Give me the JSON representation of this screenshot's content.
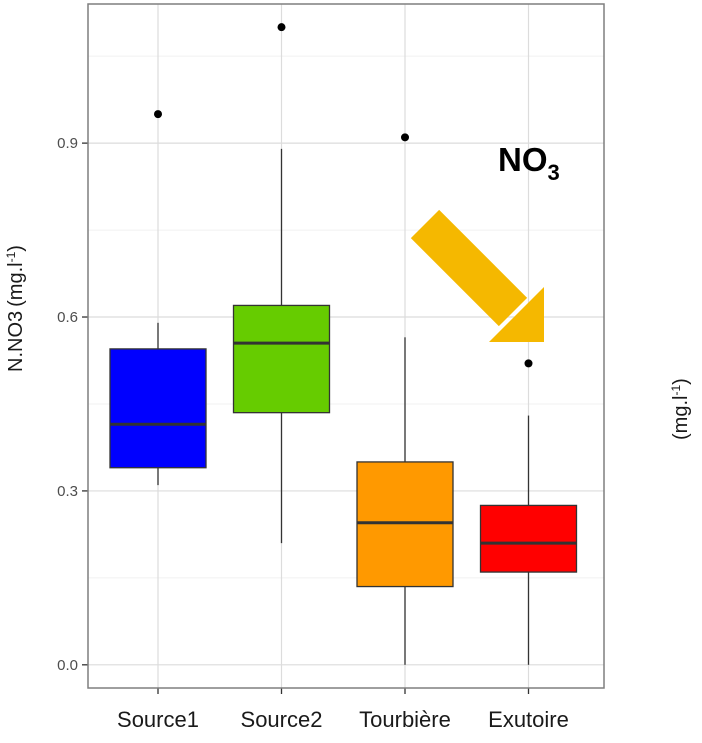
{
  "chart_data": {
    "type": "boxplot",
    "ylabel": "N.NO3",
    "ylabel_unit": "(mg.l",
    "unit_sup": "-1",
    "unit_close": ")",
    "right_unit": "(mg.l",
    "annotation": "NO",
    "annotation_sub": "3",
    "ylim": [
      -0.04,
      1.14
    ],
    "yticks": [
      0.0,
      0.3,
      0.6,
      0.9
    ],
    "ytick_labels": [
      "0.0",
      "0.3",
      "0.6",
      "0.9"
    ],
    "grid": true,
    "arrow_color": "#f5b800",
    "categories": [
      "Source1",
      "Source2",
      "Tourbière",
      "Exutoire"
    ],
    "boxes": [
      {
        "name": "Source1",
        "color": "#0000ff",
        "q1": 0.34,
        "median": 0.415,
        "q3": 0.545,
        "whisker_low": 0.31,
        "whisker_high": 0.59,
        "outliers": [
          0.95
        ]
      },
      {
        "name": "Source2",
        "color": "#66cc00",
        "q1": 0.435,
        "median": 0.555,
        "q3": 0.62,
        "whisker_low": 0.21,
        "whisker_high": 0.89,
        "outliers": [
          1.1
        ]
      },
      {
        "name": "Tourbière",
        "color": "#ff9900",
        "q1": 0.135,
        "median": 0.245,
        "q3": 0.35,
        "whisker_low": 0.0,
        "whisker_high": 0.565,
        "outliers": [
          0.91
        ]
      },
      {
        "name": "Exutoire",
        "color": "#ff0000",
        "q1": 0.16,
        "median": 0.21,
        "q3": 0.275,
        "whisker_low": 0.0,
        "whisker_high": 0.43,
        "outliers": [
          0.52
        ]
      }
    ]
  }
}
